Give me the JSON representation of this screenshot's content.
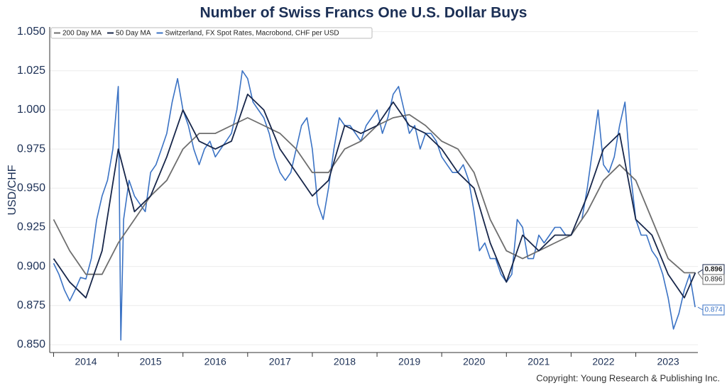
{
  "chart_data": {
    "type": "line",
    "title": "Number of Swiss Francs One U.S. Dollar Buys",
    "y_label": "USD/CHF",
    "copyright": "Copyright: Young Research & Publishing Inc.",
    "xlim": [
      2013.94,
      2023.96
    ],
    "xticks": [
      2014,
      2015,
      2016,
      2017,
      2018,
      2019,
      2020,
      2021,
      2022,
      2023
    ],
    "ylim": [
      0.845,
      1.053
    ],
    "yticks": [
      {
        "value": 0.85,
        "label": "0.850"
      },
      {
        "value": 0.875,
        "label": "0.875"
      },
      {
        "value": 0.9,
        "label": "0.900"
      },
      {
        "value": 0.925,
        "label": "0.925"
      },
      {
        "value": 0.95,
        "label": "0.950"
      },
      {
        "value": 0.975,
        "label": "0.975"
      },
      {
        "value": 1.0,
        "label": "1.000"
      },
      {
        "value": 1.025,
        "label": "1.025"
      },
      {
        "value": 1.05,
        "label": "1.050"
      }
    ],
    "grid": true,
    "legend": "top-left",
    "series": [
      {
        "name": "200 Day MA",
        "color": "#6e6e6e",
        "end_label": "0.896",
        "x": [
          2014.0,
          2014.25,
          2014.5,
          2014.75,
          2015.0,
          2015.25,
          2015.5,
          2015.75,
          2016.0,
          2016.25,
          2016.5,
          2016.75,
          2017.0,
          2017.25,
          2017.5,
          2017.75,
          2018.0,
          2018.25,
          2018.5,
          2018.75,
          2019.0,
          2019.25,
          2019.5,
          2019.75,
          2020.0,
          2020.25,
          2020.5,
          2020.75,
          2021.0,
          2021.25,
          2021.5,
          2021.75,
          2022.0,
          2022.25,
          2022.5,
          2022.75,
          2023.0,
          2023.25,
          2023.5,
          2023.75,
          2023.92
        ],
        "values": [
          0.93,
          0.91,
          0.895,
          0.895,
          0.915,
          0.93,
          0.945,
          0.955,
          0.975,
          0.985,
          0.985,
          0.99,
          0.995,
          0.99,
          0.985,
          0.975,
          0.96,
          0.96,
          0.975,
          0.98,
          0.99,
          0.995,
          0.997,
          0.99,
          0.98,
          0.975,
          0.96,
          0.93,
          0.91,
          0.905,
          0.91,
          0.915,
          0.92,
          0.935,
          0.955,
          0.965,
          0.955,
          0.93,
          0.905,
          0.896,
          0.896
        ]
      },
      {
        "name": "50 Day MA",
        "color": "#17264a",
        "end_label": "0.896",
        "x": [
          2014.0,
          2014.25,
          2014.5,
          2014.75,
          2015.0,
          2015.25,
          2015.5,
          2015.75,
          2016.0,
          2016.25,
          2016.5,
          2016.75,
          2017.0,
          2017.25,
          2017.5,
          2017.75,
          2018.0,
          2018.25,
          2018.5,
          2018.75,
          2019.0,
          2019.25,
          2019.5,
          2019.75,
          2020.0,
          2020.25,
          2020.5,
          2020.75,
          2021.0,
          2021.25,
          2021.5,
          2021.75,
          2022.0,
          2022.25,
          2022.5,
          2022.75,
          2023.0,
          2023.25,
          2023.5,
          2023.75,
          2023.92
        ],
        "values": [
          0.905,
          0.89,
          0.88,
          0.91,
          0.975,
          0.935,
          0.945,
          0.97,
          1.0,
          0.98,
          0.975,
          0.98,
          1.01,
          1.0,
          0.975,
          0.96,
          0.945,
          0.955,
          0.99,
          0.985,
          0.99,
          1.005,
          0.99,
          0.985,
          0.975,
          0.96,
          0.95,
          0.915,
          0.89,
          0.92,
          0.91,
          0.92,
          0.92,
          0.945,
          0.975,
          0.985,
          0.93,
          0.92,
          0.895,
          0.88,
          0.896
        ]
      },
      {
        "name": "Switzerland, FX Spot Rates, Macrobond, CHF per USD",
        "color": "#3a72c4",
        "end_label": "0.874",
        "x": [
          2014.0,
          2014.083,
          2014.167,
          2014.25,
          2014.333,
          2014.417,
          2014.5,
          2014.583,
          2014.667,
          2014.75,
          2014.833,
          2014.917,
          2015.0,
          2015.04,
          2015.083,
          2015.167,
          2015.25,
          2015.333,
          2015.417,
          2015.5,
          2015.583,
          2015.667,
          2015.75,
          2015.833,
          2015.917,
          2016.0,
          2016.083,
          2016.167,
          2016.25,
          2016.333,
          2016.417,
          2016.5,
          2016.583,
          2016.667,
          2016.75,
          2016.833,
          2016.917,
          2017.0,
          2017.083,
          2017.167,
          2017.25,
          2017.333,
          2017.417,
          2017.5,
          2017.583,
          2017.667,
          2017.75,
          2017.833,
          2017.917,
          2018.0,
          2018.083,
          2018.167,
          2018.25,
          2018.333,
          2018.417,
          2018.5,
          2018.583,
          2018.667,
          2018.75,
          2018.833,
          2018.917,
          2019.0,
          2019.083,
          2019.167,
          2019.25,
          2019.333,
          2019.417,
          2019.5,
          2019.583,
          2019.667,
          2019.75,
          2019.833,
          2019.917,
          2020.0,
          2020.083,
          2020.167,
          2020.25,
          2020.333,
          2020.417,
          2020.5,
          2020.583,
          2020.667,
          2020.75,
          2020.833,
          2020.917,
          2021.0,
          2021.083,
          2021.167,
          2021.25,
          2021.333,
          2021.417,
          2021.5,
          2021.583,
          2021.667,
          2021.75,
          2021.833,
          2021.917,
          2022.0,
          2022.083,
          2022.167,
          2022.25,
          2022.333,
          2022.417,
          2022.5,
          2022.583,
          2022.667,
          2022.75,
          2022.833,
          2022.917,
          2023.0,
          2023.083,
          2023.167,
          2023.25,
          2023.333,
          2023.417,
          2023.5,
          2023.583,
          2023.667,
          2023.75,
          2023.833,
          2023.917
        ],
        "values": [
          0.902,
          0.895,
          0.885,
          0.878,
          0.885,
          0.893,
          0.892,
          0.905,
          0.93,
          0.945,
          0.955,
          0.975,
          1.015,
          0.853,
          0.93,
          0.955,
          0.945,
          0.94,
          0.935,
          0.96,
          0.965,
          0.975,
          0.985,
          1.005,
          1.02,
          1.0,
          0.99,
          0.975,
          0.965,
          0.975,
          0.98,
          0.97,
          0.975,
          0.98,
          0.985,
          1.0,
          1.025,
          1.02,
          1.005,
          1.0,
          0.995,
          0.985,
          0.97,
          0.96,
          0.955,
          0.96,
          0.975,
          0.99,
          0.995,
          0.975,
          0.94,
          0.93,
          0.95,
          0.975,
          0.995,
          0.99,
          0.99,
          0.985,
          0.98,
          0.99,
          0.995,
          1.0,
          0.985,
          0.995,
          1.01,
          1.015,
          1.0,
          0.985,
          0.99,
          0.975,
          0.985,
          0.985,
          0.98,
          0.97,
          0.965,
          0.96,
          0.96,
          0.965,
          0.955,
          0.935,
          0.91,
          0.915,
          0.905,
          0.905,
          0.895,
          0.89,
          0.895,
          0.93,
          0.925,
          0.905,
          0.905,
          0.92,
          0.915,
          0.92,
          0.925,
          0.925,
          0.92,
          0.92,
          0.925,
          0.93,
          0.95,
          0.975,
          1.0,
          0.965,
          0.96,
          0.97,
          0.99,
          1.005,
          0.96,
          0.93,
          0.92,
          0.92,
          0.91,
          0.905,
          0.895,
          0.88,
          0.86,
          0.87,
          0.885,
          0.895,
          0.874
        ]
      }
    ]
  }
}
